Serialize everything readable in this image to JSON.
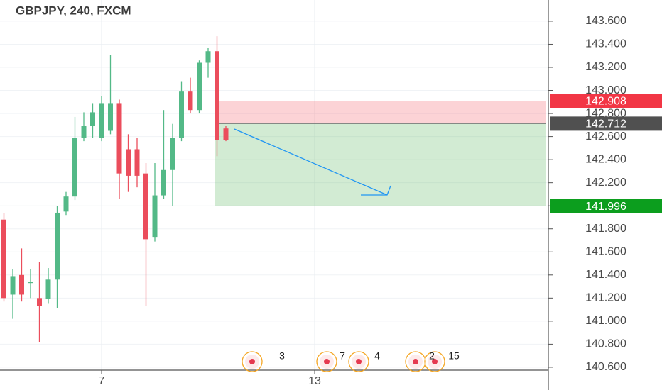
{
  "chart_data": {
    "type": "candlestick",
    "title": "GBPJPY, 240, FXCM",
    "x": [
      0,
      1,
      2,
      3,
      4,
      5,
      6,
      7,
      8,
      9,
      10,
      11,
      12,
      13,
      14,
      15,
      16,
      17,
      18,
      19,
      20,
      21,
      22,
      23,
      24,
      25
    ],
    "open": [
      141.88,
      141.23,
      141.4,
      141.33,
      141.2,
      141.19,
      141.36,
      141.95,
      142.08,
      142.59,
      142.69,
      142.59,
      142.65,
      142.89,
      142.49,
      142.49,
      142.28,
      141.73,
      142.09,
      142.31,
      142.59,
      142.99,
      142.83,
      143.24,
      143.34,
      142.67
    ],
    "high": [
      141.94,
      141.45,
      141.63,
      141.45,
      141.51,
      141.46,
      142.0,
      142.12,
      142.77,
      142.81,
      142.89,
      142.95,
      143.31,
      142.92,
      142.62,
      142.59,
      142.37,
      142.37,
      142.83,
      142.71,
      143.08,
      143.11,
      143.26,
      143.37,
      143.47,
      142.69
    ],
    "low": [
      141.17,
      141.02,
      141.17,
      141.2,
      140.82,
      141.15,
      141.11,
      141.92,
      142.05,
      142.56,
      142.59,
      142.56,
      142.62,
      142.06,
      142.12,
      142.16,
      141.13,
      141.69,
      142.06,
      142.0,
      142.56,
      142.8,
      142.8,
      143.11,
      142.43,
      142.56
    ],
    "close": [
      141.2,
      141.39,
      141.23,
      141.34,
      141.13,
      141.36,
      141.94,
      142.08,
      142.59,
      142.69,
      142.81,
      142.89,
      142.89,
      142.28,
      142.26,
      142.26,
      141.71,
      142.09,
      142.31,
      142.59,
      142.99,
      142.83,
      143.24,
      143.34,
      142.57,
      142.57
    ],
    "up_color": "#53b987",
    "down_color": "#eb4d5c",
    "xlim": [
      -0.44,
      61.32
    ],
    "xticks": [
      {
        "value": 11,
        "label": "7"
      },
      {
        "value": 35,
        "label": "13"
      }
    ],
    "ylim": [
      140.575,
      143.784
    ],
    "yticks": [
      {
        "value": 140.6,
        "label": "140.600"
      },
      {
        "value": 140.8,
        "label": "140.800"
      },
      {
        "value": 141.0,
        "label": "141.000"
      },
      {
        "value": 141.2,
        "label": "141.200"
      },
      {
        "value": 141.4,
        "label": "141.400"
      },
      {
        "value": 141.6,
        "label": "141.600"
      },
      {
        "value": 141.8,
        "label": "141.800"
      },
      {
        "value": 142.0,
        "label": "142.000"
      },
      {
        "value": 142.2,
        "label": "142.200"
      },
      {
        "value": 142.4,
        "label": "142.400"
      },
      {
        "value": 142.6,
        "label": "142.600"
      },
      {
        "value": 142.8,
        "label": "142.800"
      },
      {
        "value": 143.0,
        "label": "143.000"
      },
      {
        "value": 143.2,
        "label": "143.200"
      },
      {
        "value": 143.4,
        "label": "143.400"
      },
      {
        "value": 143.6,
        "label": "143.600"
      }
    ],
    "grid": true,
    "position": {
      "stop": {
        "value": 142.908,
        "label": "142.908"
      },
      "entry": {
        "value": 142.712,
        "label": "142.712"
      },
      "target": {
        "value": 141.996,
        "label": "141.996"
      }
    },
    "event_labels": [
      "3",
      "7",
      "4",
      "2",
      "15"
    ]
  }
}
